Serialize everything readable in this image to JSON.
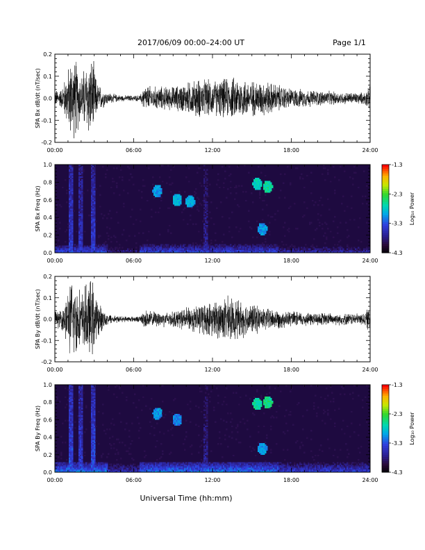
{
  "header": {
    "title": "2017/06/09  00:00–24:00 UT",
    "page": "Page 1/1"
  },
  "xlabel": "Universal Time (hh:mm)",
  "colorbar": {
    "label": "Log₁₀ Power",
    "ticks": [
      "-1.3",
      "-2.3",
      "-3.3",
      "-4.3"
    ]
  },
  "chart_data": [
    {
      "type": "line",
      "id": "bx",
      "ylabel": "SPA Bx dB/dt (nT/sec)",
      "xlim_hours": [
        0,
        24
      ],
      "ylim": [
        -0.2,
        0.2
      ],
      "x_ticks": [
        "00:00",
        "06:00",
        "12:00",
        "18:00",
        "24:00"
      ],
      "y_ticks": [
        "0.2",
        "0.1",
        "0.0",
        "-0.1",
        "-0.2"
      ],
      "envelope": {
        "hours": [
          0,
          0.5,
          1.0,
          1.2,
          1.6,
          2.0,
          2.5,
          2.9,
          3.2,
          3.5,
          4.0,
          5.0,
          6.5,
          6.8,
          7.5,
          9.0,
          10.5,
          11.0,
          12.0,
          13.0,
          14.0,
          15.0,
          16.0,
          17.0,
          18.0,
          20.0,
          22.0,
          23.5,
          24.0
        ],
        "amplitude": [
          0.04,
          0.05,
          0.15,
          0.2,
          0.2,
          0.12,
          0.2,
          0.2,
          0.08,
          0.06,
          0.03,
          0.015,
          0.015,
          0.07,
          0.06,
          0.06,
          0.09,
          0.1,
          0.09,
          0.1,
          0.11,
          0.09,
          0.09,
          0.07,
          0.05,
          0.04,
          0.03,
          0.03,
          0.06
        ]
      }
    },
    {
      "type": "heatmap",
      "id": "bxs",
      "ylabel": "SPA Bx Freq (Hz)",
      "xlim_hours": [
        0,
        24
      ],
      "ylim": [
        0,
        1.0
      ],
      "x_ticks": [
        "00:00",
        "06:00",
        "12:00",
        "18:00",
        "24:00"
      ],
      "y_ticks": [
        "1.0",
        "0.8",
        "0.6",
        "0.4",
        "0.2",
        "0.0"
      ],
      "zlim": [
        -4.3,
        -1.3
      ],
      "zlabel": "Log10 Power",
      "features": [
        {
          "kind": "low_freq_band",
          "max_hz": 0.1,
          "level": -3.3
        },
        {
          "kind": "column",
          "hour": 1.2,
          "level": -3.4
        },
        {
          "kind": "column",
          "hour": 2.0,
          "level": -3.5
        },
        {
          "kind": "column",
          "hour": 2.9,
          "level": -3.4
        },
        {
          "kind": "column",
          "hour": 11.5,
          "level": -3.7
        },
        {
          "kind": "blob",
          "hour": 7.8,
          "hz": 0.7,
          "level": -3.0
        },
        {
          "kind": "blob",
          "hour": 9.3,
          "hz": 0.6,
          "level": -2.9
        },
        {
          "kind": "blob",
          "hour": 10.3,
          "hz": 0.58,
          "level": -2.9
        },
        {
          "kind": "blob",
          "hour": 15.4,
          "hz": 0.78,
          "level": -2.7
        },
        {
          "kind": "blob",
          "hour": 16.2,
          "hz": 0.75,
          "level": -2.6
        },
        {
          "kind": "blob",
          "hour": 15.8,
          "hz": 0.27,
          "level": -3.0
        }
      ]
    },
    {
      "type": "line",
      "id": "by",
      "ylabel": "SPA By dB/dt (nT/sec)",
      "xlim_hours": [
        0,
        24
      ],
      "ylim": [
        -0.2,
        0.2
      ],
      "x_ticks": [
        "00:00",
        "06:00",
        "12:00",
        "18:00",
        "24:00"
      ],
      "y_ticks": [
        "0.2",
        "0.1",
        "0.0",
        "-0.1",
        "-0.2"
      ],
      "envelope": {
        "hours": [
          0,
          0.5,
          1.0,
          1.2,
          1.6,
          2.0,
          2.5,
          2.9,
          3.2,
          3.5,
          4.0,
          5.0,
          6.5,
          6.8,
          7.5,
          9.0,
          10.5,
          11.0,
          12.0,
          13.0,
          14.0,
          15.0,
          16.0,
          17.0,
          18.0,
          20.0,
          22.0,
          23.5,
          24.0
        ],
        "amplitude": [
          0.04,
          0.05,
          0.15,
          0.2,
          0.2,
          0.14,
          0.2,
          0.2,
          0.1,
          0.07,
          0.03,
          0.015,
          0.015,
          0.05,
          0.04,
          0.04,
          0.07,
          0.08,
          0.09,
          0.12,
          0.1,
          0.08,
          0.06,
          0.05,
          0.04,
          0.035,
          0.03,
          0.03,
          0.07
        ]
      }
    },
    {
      "type": "heatmap",
      "id": "bys",
      "ylabel": "SPA By Freq (Hz)",
      "xlim_hours": [
        0,
        24
      ],
      "ylim": [
        0,
        1.0
      ],
      "x_ticks": [
        "00:00",
        "06:00",
        "12:00",
        "18:00",
        "24:00"
      ],
      "y_ticks": [
        "1.0",
        "0.8",
        "0.6",
        "0.4",
        "0.2",
        "0.0"
      ],
      "zlim": [
        -4.3,
        -1.3
      ],
      "zlabel": "Log10 Power",
      "features": [
        {
          "kind": "low_freq_band",
          "max_hz": 0.12,
          "level": -3.1
        },
        {
          "kind": "column",
          "hour": 1.2,
          "level": -3.3
        },
        {
          "kind": "column",
          "hour": 2.0,
          "level": -3.4
        },
        {
          "kind": "column",
          "hour": 2.9,
          "level": -3.3
        },
        {
          "kind": "column",
          "hour": 11.5,
          "level": -3.7
        },
        {
          "kind": "blob",
          "hour": 7.8,
          "hz": 0.67,
          "level": -3.0
        },
        {
          "kind": "blob",
          "hour": 9.3,
          "hz": 0.6,
          "level": -3.1
        },
        {
          "kind": "blob",
          "hour": 15.4,
          "hz": 0.78,
          "level": -2.6
        },
        {
          "kind": "blob",
          "hour": 16.2,
          "hz": 0.8,
          "level": -2.5
        },
        {
          "kind": "blob",
          "hour": 15.8,
          "hz": 0.27,
          "level": -3.0
        }
      ]
    }
  ]
}
